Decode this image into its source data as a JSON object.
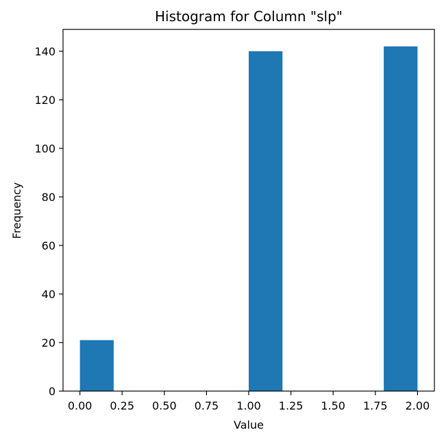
{
  "chart_data": {
    "type": "bar",
    "title": "Histogram for Column \"slp\"",
    "xlabel": "Value",
    "ylabel": "Frequency",
    "color": "#1f77b4",
    "bins": [
      {
        "x0": 0.0,
        "x1": 0.2,
        "count": 21
      },
      {
        "x0": 0.2,
        "x1": 0.4,
        "count": 0
      },
      {
        "x0": 0.4,
        "x1": 0.6,
        "count": 0
      },
      {
        "x0": 0.6,
        "x1": 0.8,
        "count": 0
      },
      {
        "x0": 0.8,
        "x1": 1.0,
        "count": 0
      },
      {
        "x0": 1.0,
        "x1": 1.2,
        "count": 140
      },
      {
        "x0": 1.2,
        "x1": 1.4,
        "count": 0
      },
      {
        "x0": 1.4,
        "x1": 1.6,
        "count": 0
      },
      {
        "x0": 1.6,
        "x1": 1.8,
        "count": 0
      },
      {
        "x0": 1.8,
        "x1": 2.0,
        "count": 142
      }
    ],
    "xlim": [
      -0.1,
      2.1
    ],
    "ylim": [
      0,
      149
    ],
    "xticks": [
      "0.00",
      "0.25",
      "0.50",
      "0.75",
      "1.00",
      "1.25",
      "1.50",
      "1.75",
      "2.00"
    ],
    "yticks": [
      "0",
      "20",
      "40",
      "60",
      "80",
      "100",
      "120",
      "140"
    ],
    "grid": false,
    "legend": "none"
  }
}
